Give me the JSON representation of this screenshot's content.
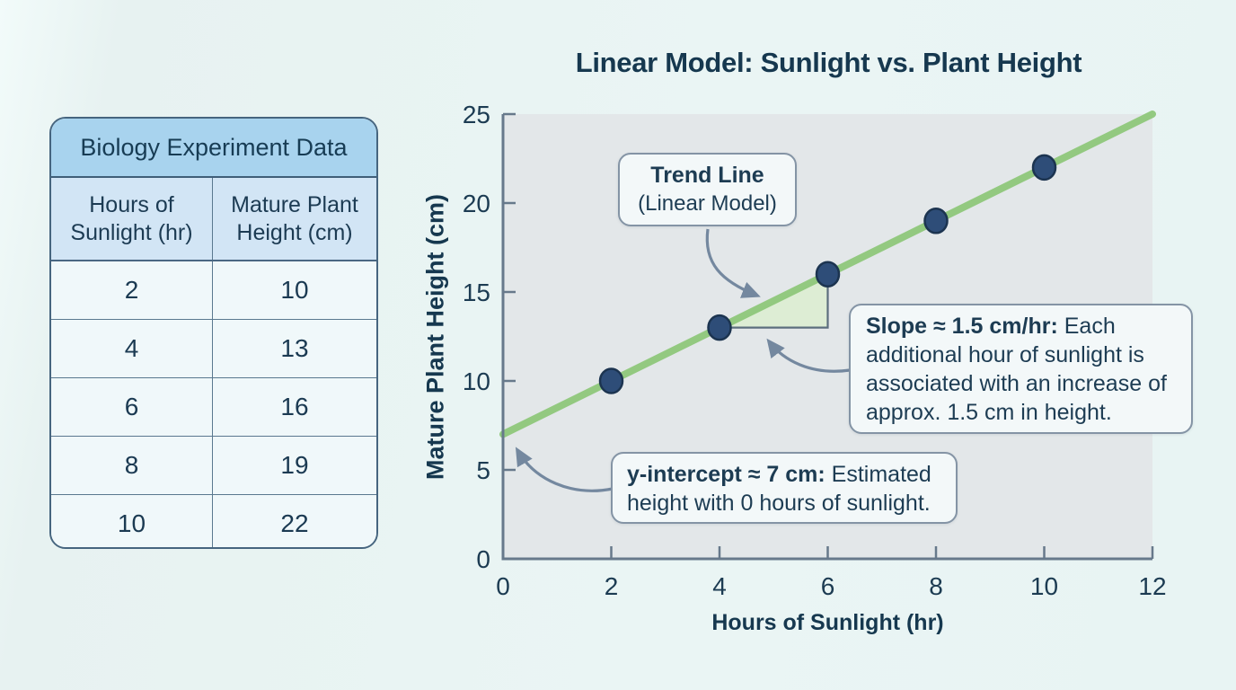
{
  "table": {
    "title": "Biology Experiment Data",
    "columns": [
      "Hours of Sunlight (hr)",
      "Mature Plant Height (cm)"
    ],
    "rows": [
      [
        2,
        10
      ],
      [
        4,
        13
      ],
      [
        6,
        16
      ],
      [
        8,
        19
      ],
      [
        10,
        22
      ]
    ]
  },
  "chart_data": {
    "type": "scatter",
    "title": "Linear Model: Sunlight vs. Plant Height",
    "xlabel": "Hours of Sunlight (hr)",
    "ylabel": "Mature Plant Height (cm)",
    "x": [
      2,
      4,
      6,
      8,
      10
    ],
    "y": [
      10,
      13,
      16,
      19,
      22
    ],
    "xlim": [
      0,
      12
    ],
    "ylim": [
      0,
      25
    ],
    "x_ticks": [
      0,
      2,
      4,
      6,
      8,
      10,
      12
    ],
    "y_ticks": [
      0,
      5,
      10,
      15,
      20,
      25
    ],
    "grid": false,
    "trend_line": {
      "slope": 1.5,
      "intercept": 7,
      "x_start": 0,
      "x_end": 12
    },
    "slope_triangle": {
      "x1": 4,
      "x2": 6,
      "y1": 13,
      "y2": 16
    },
    "annotations": [
      "Trend Line (Linear Model)",
      "Slope ≈ 1.5 cm/hr: Each additional hour of sunlight is associated with an increase of approx. 1.5 cm in height.",
      "y-intercept ≈ 7 cm: Estimated height with 0 hours of sunlight."
    ]
  },
  "callouts": {
    "trend": {
      "line1": "Trend Line",
      "line2": "(Linear Model)"
    },
    "slope": {
      "bold": "Slope ≈ 1.5 cm/hr:",
      "rest": " Each additional hour of sunlight is associated with an increase of approx. 1.5 cm in height."
    },
    "intercept": {
      "bold": "y-intercept ≈ 7 cm:",
      "rest": " Estimated height with 0 hours of sunlight."
    }
  },
  "colors": {
    "page_bg": "#eaf5f4",
    "plot_bg": "#e3e7e9",
    "axis": "#67798b",
    "tick_label": "#1c3b52",
    "trend_line_green": "#8fc87b",
    "triangle_fill": "#dcedd3",
    "triangle_leg": "#5c6f7e",
    "point_fill": "#2e4d78",
    "point_stroke": "#1c3450",
    "arrow": "#74889f",
    "table_title_bg": "#a8d3ee",
    "table_header_bg": "#d2e5f5",
    "table_row_bg": "#f0f8fa",
    "text_navy": "#1c3b53"
  }
}
